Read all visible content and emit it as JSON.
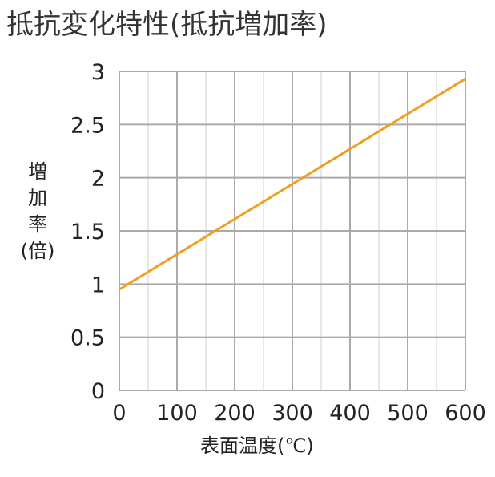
{
  "title": "抵抗変化特性(抵抗増加率)",
  "chart_data": {
    "type": "line",
    "title": "抵抗変化特性(抵抗増加率)",
    "xlabel": "表面温度(℃)",
    "ylabel_chars": [
      "増",
      "加",
      "率",
      "(倍)"
    ],
    "xlim": [
      0,
      600
    ],
    "ylim": [
      0,
      3
    ],
    "x_ticks": [
      "0",
      "100",
      "200",
      "300",
      "400",
      "500",
      "600"
    ],
    "y_ticks": [
      "0",
      "0.5",
      "1",
      "1.5",
      "2",
      "2.5",
      "3"
    ],
    "grid": true,
    "minor_grid": true,
    "series": [
      {
        "x": [
          0,
          100,
          200,
          300,
          400,
          500,
          600
        ],
        "y": [
          0.95,
          1.28,
          1.61,
          1.94,
          2.27,
          2.6,
          2.93
        ]
      }
    ],
    "line_color": "#f0a020",
    "grid_color": "#aaaaaa",
    "minor_grid_color": "#d0d0d0"
  }
}
